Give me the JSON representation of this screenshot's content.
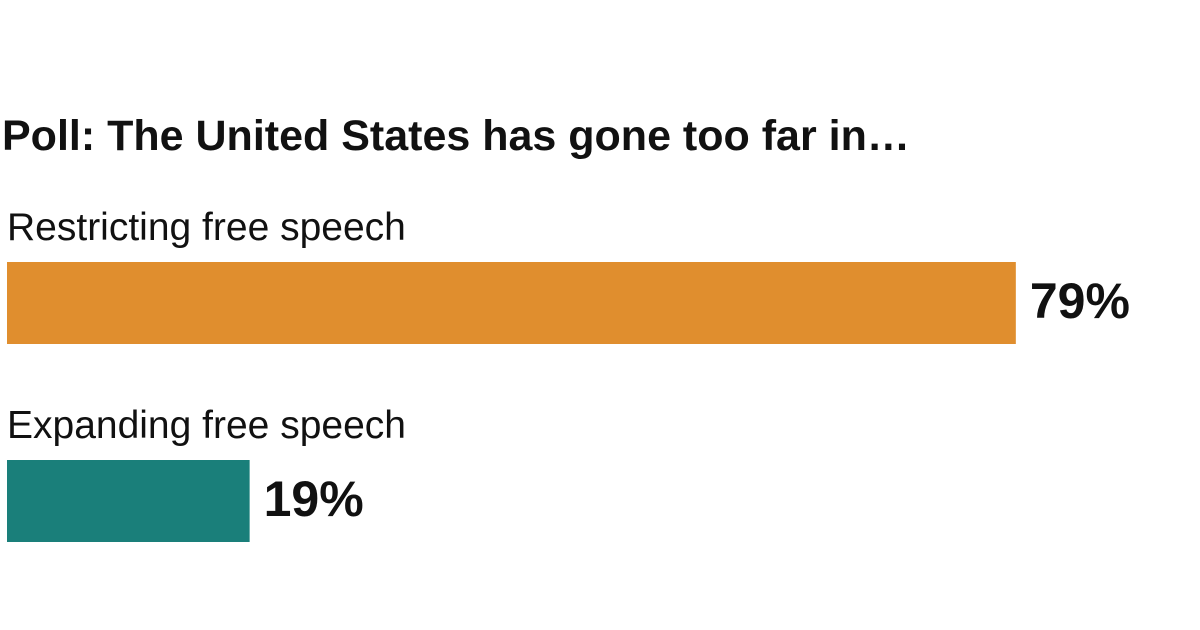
{
  "chart_data": {
    "type": "bar",
    "orientation": "horizontal",
    "title": "Poll: The United States has gone too far in…",
    "categories": [
      "Restricting free speech",
      "Expanding free speech"
    ],
    "values": [
      79,
      19
    ],
    "value_labels": [
      "79%",
      "19%"
    ],
    "colors": [
      "#e08e2e",
      "#1a7f7a"
    ]
  }
}
